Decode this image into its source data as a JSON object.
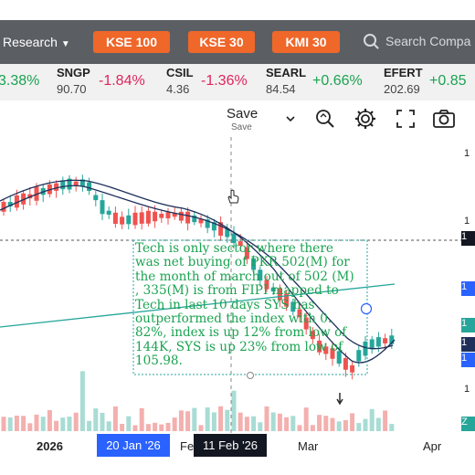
{
  "nav": {
    "research_label": "Research",
    "indices": [
      "KSE 100",
      "KSE 30",
      "KMI 30"
    ],
    "search_placeholder": "Search Compa"
  },
  "ticker": [
    {
      "symbol": "",
      "price": "",
      "change": "3.38%",
      "dir": "pos"
    },
    {
      "symbol": "SNGP",
      "price": "90.70",
      "change": "-1.84%",
      "dir": "neg"
    },
    {
      "symbol": "CSIL",
      "price": "4.36",
      "change": "-1.36%",
      "dir": "neg"
    },
    {
      "symbol": "SEARL",
      "price": "84.54",
      "change": "+0.66%",
      "dir": "pos"
    },
    {
      "symbol": "EFERT",
      "price": "202.69",
      "change": "+0.85",
      "dir": "pos"
    }
  ],
  "toolbar": {
    "save_label": "Save",
    "save_sub": "Save",
    "icons": [
      "chevron-down-icon",
      "quick-search-icon",
      "settings-icon",
      "fullscreen-icon",
      "camera-icon"
    ]
  },
  "chart": {
    "note": "Tech is only sector where there\nwas net buying of PKR 502(M) for\nthe month of march out of 502 (M)\n, 335(M) is from FIPI mapped to\nTech in last 10 days SYS has\noutperformed the index with 0.\n82%, index is up 12% from low of\n144K, SYS is up 23% from low of\n105.98.",
    "x_labels": [
      "2026",
      "Fe",
      "Mar",
      "Apr"
    ],
    "x_highlight": "20 Jan '26",
    "x_crosshair": "11 Feb '26",
    "y_labels": [
      "1",
      "1",
      "1",
      "1",
      "1",
      "1",
      "1",
      "1",
      "Z"
    ],
    "colors": {
      "up": "#26a69a",
      "down": "#ef5350",
      "ma_dark": "#1e2f5a",
      "ma_light": "#26a69a",
      "note": "#1aa351"
    }
  }
}
